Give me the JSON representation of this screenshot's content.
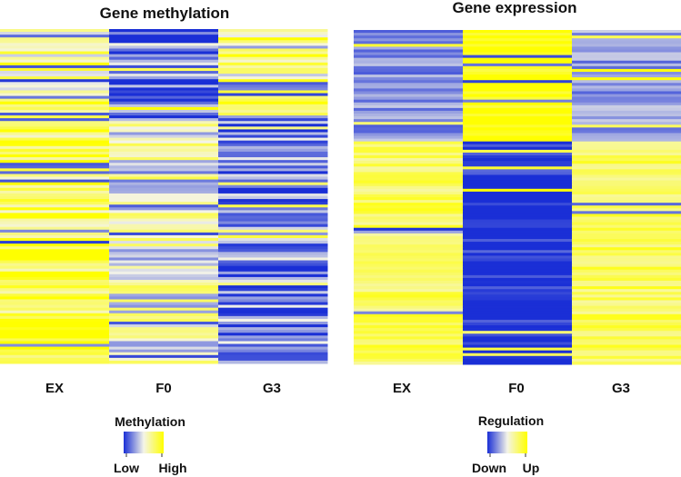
{
  "colors": {
    "low": "#1a2fd6",
    "mid": "#f4f4e8",
    "high": "#ffff00"
  },
  "chart_data": [
    {
      "type": "heatmap",
      "title": "Gene methylation",
      "columns": [
        "EX",
        "F0",
        "G3"
      ],
      "legend": {
        "title": "Methylation",
        "low_label": "Low",
        "high_label": "High"
      },
      "value_range": [
        0,
        1
      ],
      "blocks": [
        {
          "row_fraction": 0.27,
          "column_levels": [
            0.72,
            0.18,
            0.72
          ],
          "variability": 0.35,
          "description_levels": "EX mixed-high, F0 low, G3 mixed"
        },
        {
          "row_fraction": 0.73,
          "column_levels": [
            0.85,
            0.55,
            0.22
          ],
          "variability": 0.3,
          "description_levels": "EX high, F0 mid, G3 low"
        }
      ]
    },
    {
      "type": "heatmap",
      "title": "Gene expression",
      "columns": [
        "EX",
        "F0",
        "G3"
      ],
      "legend": {
        "title": "Regulation",
        "low_label": "Down",
        "high_label": "Up"
      },
      "value_range": [
        0,
        1
      ],
      "blocks": [
        {
          "row_fraction": 0.33,
          "column_levels": [
            0.25,
            1.0,
            0.28
          ],
          "variability": 0.15,
          "description_levels": "EX down, F0 up, G3 down"
        },
        {
          "row_fraction": 0.67,
          "column_levels": [
            0.8,
            0.0,
            0.8
          ],
          "variability": 0.15,
          "description_levels": "EX up, F0 down, G3 up"
        }
      ]
    }
  ]
}
